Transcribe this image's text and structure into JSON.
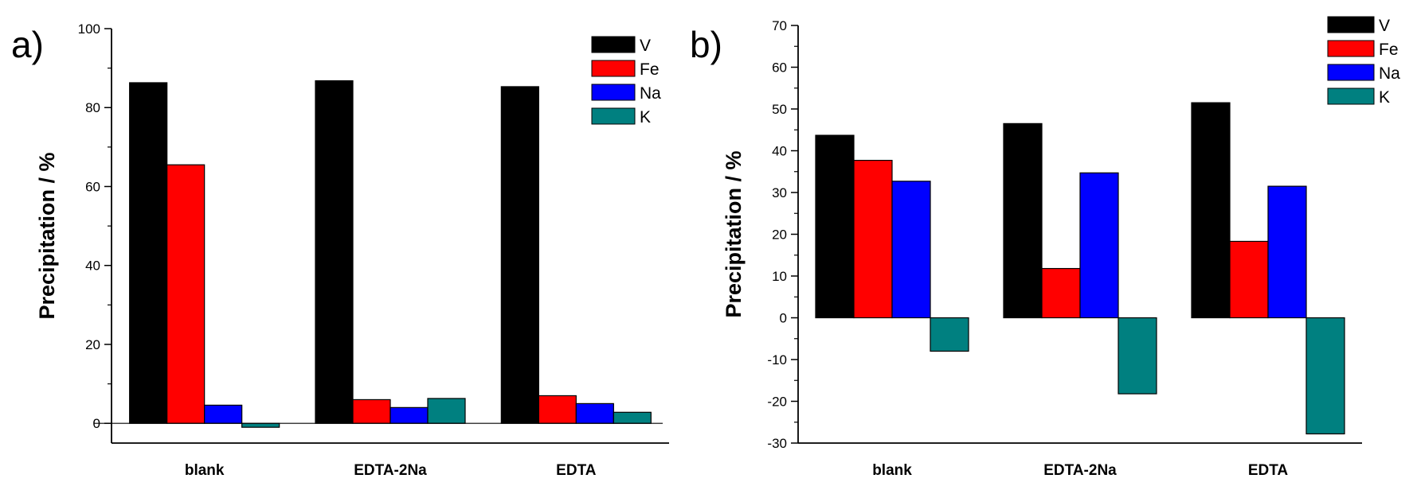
{
  "chart_data": [
    {
      "panel_label": "a)",
      "type": "bar",
      "categories": [
        "blank",
        "EDTA-2Na",
        "EDTA"
      ],
      "series": [
        {
          "name": "V",
          "values": [
            86.3,
            86.8,
            85.3
          ]
        },
        {
          "name": "Fe",
          "values": [
            65.5,
            6.0,
            7.0
          ]
        },
        {
          "name": "Na",
          "values": [
            4.6,
            4.0,
            5.0
          ]
        },
        {
          "name": "K",
          "values": [
            -1.0,
            6.3,
            2.8
          ]
        }
      ],
      "ylabel": "Precipitation / %",
      "xlabel": "",
      "ylim": [
        -5,
        100
      ],
      "yticks": [
        0,
        20,
        40,
        60,
        80,
        100
      ],
      "zero_line": true,
      "legend": "top-right",
      "colors": {
        "V": "#000000",
        "Fe": "#ff0000",
        "Na": "#0000ff",
        "K": "#008080"
      }
    },
    {
      "panel_label": "b)",
      "type": "bar",
      "categories": [
        "blank",
        "EDTA-2Na",
        "EDTA"
      ],
      "series": [
        {
          "name": "V",
          "values": [
            43.7,
            46.5,
            51.5
          ]
        },
        {
          "name": "Fe",
          "values": [
            37.7,
            11.8,
            18.3
          ]
        },
        {
          "name": "Na",
          "values": [
            32.7,
            34.7,
            31.5
          ]
        },
        {
          "name": "K",
          "values": [
            -8.0,
            -18.2,
            -27.8
          ]
        }
      ],
      "ylabel": "Precipitation / %",
      "xlabel": "",
      "ylim": [
        -30,
        70
      ],
      "yticks": [
        -30,
        -20,
        -10,
        0,
        10,
        20,
        30,
        40,
        50,
        60,
        70
      ],
      "zero_line": false,
      "legend": "top-right",
      "colors": {
        "V": "#000000",
        "Fe": "#ff0000",
        "Na": "#0000ff",
        "K": "#008080"
      }
    }
  ]
}
